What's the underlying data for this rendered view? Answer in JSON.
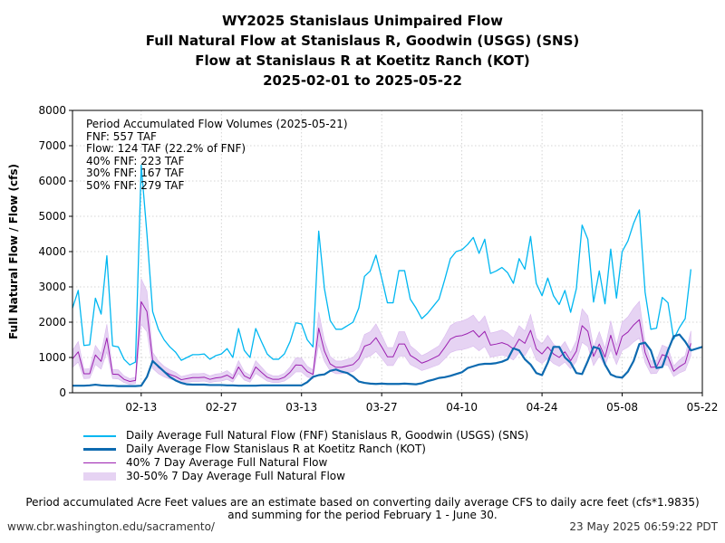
{
  "title_lines": [
    "WY2025 Stanislaus Unimpaired Flow",
    "Full Natural Flow at Stanislaus R, Goodwin (USGS) (SNS)",
    "Flow at Stanislaus R at Koetitz Ranch (KOT)",
    "2025-02-01 to 2025-05-22"
  ],
  "annotation": {
    "lines": [
      "Period Accumulated Flow Volumes (2025-05-21)",
      "FNF: 557 TAF",
      "Flow: 124 TAF (22.2% of FNF)",
      "40% FNF: 223 TAF",
      "30% FNF: 167 TAF",
      "50% FNF: 279 TAF"
    ]
  },
  "footnote": [
    "Period accumulated Acre Feet values are an estimate based on converting daily average CFS to daily acre feet (cfs*1.9835)",
    "and summing for the period February 1 - June 30."
  ],
  "footer": {
    "url": "www.cbr.washington.edu/sacramento/",
    "timestamp": "23 May 2025 06:59:22 PDT"
  },
  "colors": {
    "fnf": "#00b7f1",
    "flow": "#0d6ab0",
    "pct40": "#9b1fb0",
    "band": "#e6d3f3",
    "grid": "#c8c8c8"
  },
  "chart_data": {
    "type": "line",
    "ylabel": "Full Natural Flow / Flow (cfs)",
    "xlabel": "",
    "ylim": [
      0,
      8000
    ],
    "yticks": [
      0,
      1000,
      2000,
      3000,
      4000,
      5000,
      6000,
      7000,
      8000
    ],
    "xlim": [
      "2025-02-01",
      "2025-05-22"
    ],
    "xticks": [
      "02-13",
      "02-27",
      "03-13",
      "03-27",
      "04-10",
      "04-24",
      "05-08",
      "05-22"
    ],
    "grid": true,
    "series": [
      {
        "name": "Daily Average Full Natural Flow (FNF) Stanislaus R, Goodwin (USGS) (SNS)",
        "values": [
          2400,
          2900,
          1340,
          1360,
          2680,
          2230,
          3880,
          1330,
          1300,
          950,
          790,
          870,
          6450,
          4500,
          2300,
          1800,
          1500,
          1300,
          1150,
          920,
          1000,
          1080,
          1080,
          1100,
          950,
          1050,
          1100,
          1250,
          1000,
          1820,
          1200,
          1000,
          1820,
          1450,
          1100,
          950,
          950,
          1100,
          1450,
          1980,
          1950,
          1500,
          1300,
          4580,
          2950,
          2050,
          1800,
          1800,
          1900,
          2000,
          2400,
          3300,
          3450,
          3900,
          3250,
          2550,
          2550,
          3460,
          3460,
          2650,
          2400,
          2100,
          2250,
          2450,
          2650,
          3200,
          3800,
          4000,
          4050,
          4200,
          4400,
          3950,
          4350,
          3380,
          3450,
          3550,
          3400,
          3100,
          3800,
          3500,
          4430,
          3100,
          2750,
          3250,
          2750,
          2500,
          2900,
          2280,
          2950,
          4750,
          4350,
          2570,
          3450,
          2520,
          4070,
          2680,
          4000,
          4300,
          4800,
          5180,
          2850,
          1800,
          1830,
          2700,
          2550,
          1520,
          1850,
          2100,
          3500
        ],
        "color_key": "fnf"
      },
      {
        "name": "Daily Average Flow Stanislaus R at Koetitz Ranch (KOT)",
        "values": [
          200,
          200,
          200,
          210,
          230,
          210,
          200,
          200,
          190,
          190,
          190,
          190,
          200,
          450,
          900,
          750,
          600,
          450,
          350,
          280,
          240,
          230,
          230,
          230,
          220,
          220,
          220,
          210,
          210,
          200,
          200,
          200,
          200,
          210,
          210,
          210,
          210,
          210,
          210,
          210,
          210,
          300,
          450,
          500,
          520,
          620,
          660,
          600,
          560,
          460,
          320,
          280,
          260,
          250,
          260,
          250,
          250,
          250,
          260,
          250,
          240,
          270,
          330,
          370,
          420,
          440,
          480,
          530,
          580,
          700,
          750,
          800,
          820,
          820,
          840,
          880,
          950,
          1260,
          1200,
          950,
          800,
          560,
          500,
          850,
          1300,
          1300,
          1000,
          850,
          560,
          530,
          900,
          1300,
          1250,
          800,
          520,
          450,
          430,
          600,
          900,
          1380,
          1420,
          1200,
          700,
          730,
          1200,
          1600,
          1650,
          1450,
          1200,
          1250,
          1300
        ],
        "color_key": "flow"
      },
      {
        "name": "40% 7 Day Average Full Natural Flow",
        "values": [
          960,
          1160,
          540,
          540,
          1070,
          890,
          1550,
          530,
          520,
          380,
          320,
          350,
          2580,
          2300,
          920,
          720,
          600,
          520,
          460,
          370,
          400,
          430,
          430,
          440,
          380,
          420,
          440,
          500,
          400,
          730,
          480,
          400,
          730,
          580,
          440,
          380,
          380,
          440,
          580,
          790,
          780,
          600,
          520,
          1830,
          1180,
          820,
          720,
          720,
          760,
          800,
          960,
          1320,
          1380,
          1560,
          1300,
          1020,
          1020,
          1380,
          1380,
          1060,
          960,
          840,
          900,
          980,
          1060,
          1280,
          1520,
          1600,
          1620,
          1680,
          1760,
          1580,
          1740,
          1350,
          1380,
          1420,
          1360,
          1240,
          1520,
          1400,
          1770,
          1240,
          1100,
          1300,
          1100,
          1000,
          1160,
          910,
          1180,
          1900,
          1740,
          1030,
          1380,
          1010,
          1630,
          1070,
          1600,
          1720,
          1920,
          2070,
          1140,
          720,
          730,
          1080,
          1020,
          610,
          740,
          840,
          1400
        ],
        "color_key": "pct40"
      },
      {
        "name": "30-50% 7 Day Average Full Natural Flow",
        "type": "band",
        "lower": [
          720,
          870,
          400,
          410,
          800,
          670,
          1160,
          400,
          390,
          290,
          240,
          260,
          1940,
          1730,
          690,
          540,
          450,
          390,
          350,
          280,
          300,
          320,
          320,
          330,
          290,
          320,
          330,
          380,
          300,
          550,
          360,
          300,
          550,
          440,
          330,
          290,
          290,
          330,
          440,
          590,
          590,
          450,
          390,
          1370,
          890,
          620,
          540,
          540,
          570,
          600,
          720,
          990,
          1040,
          1170,
          980,
          770,
          770,
          1040,
          1040,
          800,
          720,
          630,
          680,
          740,
          800,
          960,
          1140,
          1200,
          1220,
          1260,
          1320,
          1190,
          1310,
          1010,
          1040,
          1070,
          1020,
          930,
          1140,
          1050,
          1330,
          930,
          830,
          980,
          830,
          750,
          870,
          680,
          890,
          1430,
          1310,
          770,
          1040,
          760,
          1220,
          800,
          1200,
          1290,
          1440,
          1550,
          860,
          540,
          550,
          810,
          770,
          460,
          560,
          630,
          1050
        ],
        "upper": [
          1200,
          1450,
          670,
          680,
          1340,
          1110,
          1940,
          660,
          650,
          480,
          400,
          440,
          3230,
          2880,
          1150,
          900,
          750,
          650,
          580,
          460,
          500,
          540,
          540,
          550,
          480,
          530,
          550,
          630,
          500,
          910,
          600,
          500,
          910,
          730,
          550,
          480,
          480,
          550,
          730,
          990,
          980,
          750,
          650,
          2290,
          1480,
          1030,
          900,
          900,
          950,
          1000,
          1200,
          1650,
          1730,
          1950,
          1630,
          1280,
          1280,
          1730,
          1730,
          1330,
          1200,
          1050,
          1130,
          1230,
          1330,
          1600,
          1900,
          2000,
          2030,
          2100,
          2200,
          1980,
          2180,
          1690,
          1730,
          1780,
          1700,
          1550,
          1900,
          1750,
          2220,
          1550,
          1380,
          1630,
          1380,
          1250,
          1450,
          1140,
          1480,
          2380,
          2180,
          1290,
          1730,
          1260,
          2040,
          1340,
          2000,
          2150,
          2400,
          2590,
          1430,
          900,
          920,
          1350,
          1280,
          760,
          930,
          1050,
          1750
        ],
        "color_key": "band"
      }
    ]
  }
}
